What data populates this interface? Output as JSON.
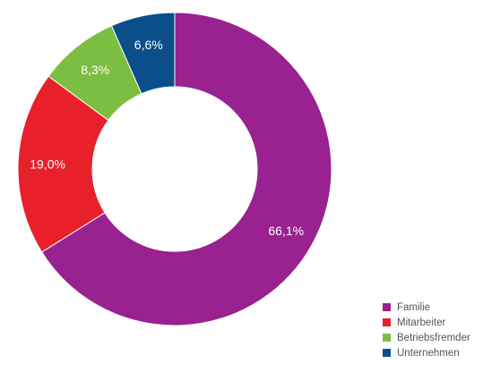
{
  "chart_data": {
    "type": "pie",
    "title": "",
    "categories": [
      "Familie",
      "Mitarbeiter",
      "Betriebsfremder",
      "Unternehmen"
    ],
    "values": [
      66.1,
      19.0,
      8.3,
      6.6
    ],
    "value_labels": [
      "66,1%",
      "19,0%",
      "8,3%",
      "6,6%"
    ],
    "colors": [
      "#9A2190",
      "#E8202A",
      "#7CBE42",
      "#0A4F8A"
    ],
    "legend_placement": "bottom-right",
    "donut": true
  },
  "legend": {
    "items": [
      {
        "label": "Familie",
        "color": "#9A2190"
      },
      {
        "label": "Mitarbeiter",
        "color": "#E8202A"
      },
      {
        "label": "Betriebsfremder",
        "color": "#7CBE42"
      },
      {
        "label": "Unternehmen",
        "color": "#0A4F8A"
      }
    ]
  }
}
